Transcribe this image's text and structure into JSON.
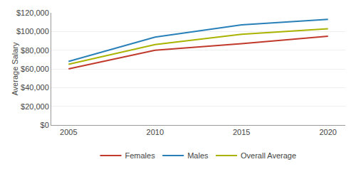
{
  "chart_data": {
    "type": "line",
    "ylabel": "Average Salary",
    "x": [
      2005,
      2010,
      2015,
      2020
    ],
    "series": [
      {
        "name": "Females",
        "color": "#c0392b",
        "values": [
          60000,
          80000,
          87000,
          95000
        ]
      },
      {
        "name": "Males",
        "color": "#2980b9",
        "values": [
          68000,
          94000,
          107000,
          113000
        ]
      },
      {
        "name": "Overall Average",
        "color": "#aab400",
        "values": [
          65000,
          86000,
          97000,
          103000
        ]
      }
    ],
    "xlim": [
      2004,
      2021
    ],
    "xticks": [
      2005,
      2010,
      2015,
      2020
    ],
    "ylim": [
      0,
      120000
    ],
    "yticks": [
      {
        "value": 0,
        "label": "$0"
      },
      {
        "value": 20000,
        "label": "$20,000"
      },
      {
        "value": 40000,
        "label": "$40,000"
      },
      {
        "value": 60000,
        "label": "$60,000"
      },
      {
        "value": 80000,
        "label": "$80,000"
      },
      {
        "value": 100000,
        "label": "$100,000"
      },
      {
        "value": 120000,
        "label": "$120,000"
      }
    ],
    "grid": true,
    "legend": "bottom"
  }
}
